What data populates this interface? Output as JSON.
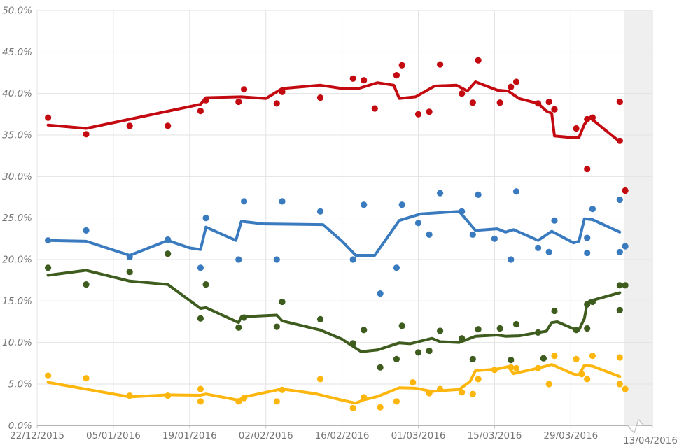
{
  "chart_data": {
    "type": "scatter",
    "title": "",
    "description": "Polling chart: four series of poll result dots with thick trend lines, percentages vs date",
    "grid": true,
    "legend_position": "none",
    "x_axis": {
      "start_date_label": "22/12/2015",
      "tick_days": [
        0,
        14,
        28,
        42,
        56,
        70,
        84,
        98
      ],
      "tick_labels": [
        "22/12/2015",
        "05/01/2016",
        "19/01/2016",
        "02/02/2016",
        "16/02/2016",
        "01/03/2016",
        "15/03/2016",
        "29/03/2016"
      ],
      "end_tick_day": 113,
      "end_tick_label": "13/04/2016",
      "total_days": 113
    },
    "y_axis": {
      "min": 0,
      "max": 50,
      "step": 5,
      "tick_labels": [
        "0.0%",
        "5.0%",
        "10.0%",
        "15.0%",
        "20.0%",
        "25.0%",
        "30.0%",
        "35.0%",
        "40.0%",
        "45.0%",
        "50.0%"
      ]
    },
    "highlight_band": {
      "from_day": 107.8,
      "to_day": 113
    },
    "series": [
      {
        "name": "red-series",
        "color": "#c30a10",
        "trend": [
          [
            2,
            36.2
          ],
          [
            9,
            35.8
          ],
          [
            30,
            38.7
          ],
          [
            31,
            39.5
          ],
          [
            37.5,
            39.6
          ],
          [
            42,
            39.4
          ],
          [
            45,
            40.6
          ],
          [
            52,
            41.0
          ],
          [
            56,
            40.6
          ],
          [
            59,
            40.6
          ],
          [
            62.5,
            41.3
          ],
          [
            65.5,
            41.0
          ],
          [
            66.5,
            39.4
          ],
          [
            69.5,
            39.6
          ],
          [
            73,
            40.9
          ],
          [
            77,
            41.0
          ],
          [
            79,
            40.3
          ],
          [
            80.5,
            41.4
          ],
          [
            84.5,
            40.4
          ],
          [
            86.5,
            40.3
          ],
          [
            88.5,
            39.4
          ],
          [
            92,
            38.8
          ],
          [
            93.5,
            37.9
          ],
          [
            94.5,
            37.6
          ],
          [
            95,
            34.9
          ],
          [
            98,
            34.7
          ],
          [
            99.5,
            34.7
          ],
          [
            100.5,
            36.3
          ],
          [
            101.5,
            37.1
          ],
          [
            107,
            34.2
          ]
        ],
        "polls": [
          [
            2,
            37.1
          ],
          [
            9,
            35.1
          ],
          [
            17,
            36.1
          ],
          [
            24,
            36.1
          ],
          [
            30,
            37.9
          ],
          [
            31,
            39.2
          ],
          [
            37,
            39.0
          ],
          [
            38,
            40.5
          ],
          [
            44,
            38.8
          ],
          [
            45,
            40.2
          ],
          [
            52,
            39.5
          ],
          [
            58,
            41.8
          ],
          [
            60,
            41.6
          ],
          [
            62,
            38.2
          ],
          [
            66,
            42.2
          ],
          [
            67,
            43.4
          ],
          [
            70,
            37.5
          ],
          [
            72,
            37.8
          ],
          [
            74,
            43.5
          ],
          [
            78,
            40.0
          ],
          [
            80,
            38.9
          ],
          [
            81,
            44.0
          ],
          [
            85,
            38.9
          ],
          [
            87,
            40.8
          ],
          [
            88,
            41.4
          ],
          [
            92,
            38.8
          ],
          [
            94,
            39.0
          ],
          [
            95,
            38.1
          ],
          [
            99,
            35.8
          ],
          [
            101,
            30.9
          ],
          [
            101,
            36.9
          ],
          [
            102,
            37.1
          ],
          [
            107,
            34.3
          ],
          [
            107,
            39.0
          ],
          [
            108,
            28.3
          ]
        ]
      },
      {
        "name": "blue-series",
        "color": "#3a7bbf",
        "trend": [
          [
            2,
            22.3
          ],
          [
            9,
            22.2
          ],
          [
            17,
            20.5
          ],
          [
            24,
            22.3
          ],
          [
            28,
            21.4
          ],
          [
            30,
            21.2
          ],
          [
            31,
            23.9
          ],
          [
            36.5,
            22.3
          ],
          [
            37.5,
            24.6
          ],
          [
            41.5,
            24.3
          ],
          [
            52.5,
            24.2
          ],
          [
            56,
            22.2
          ],
          [
            58.5,
            20.5
          ],
          [
            62,
            20.5
          ],
          [
            66.5,
            24.7
          ],
          [
            70.5,
            25.5
          ],
          [
            77.5,
            25.8
          ],
          [
            80.5,
            23.5
          ],
          [
            84.5,
            23.7
          ],
          [
            86,
            23.3
          ],
          [
            87.5,
            23.6
          ],
          [
            92,
            22.3
          ],
          [
            94.5,
            23.4
          ],
          [
            98.5,
            22.0
          ],
          [
            99.5,
            22.2
          ],
          [
            100.5,
            24.9
          ],
          [
            102,
            24.8
          ],
          [
            107,
            23.3
          ]
        ],
        "polls": [
          [
            2,
            22.3
          ],
          [
            9,
            23.5
          ],
          [
            17,
            20.3
          ],
          [
            24,
            22.4
          ],
          [
            30,
            19.0
          ],
          [
            31,
            25.0
          ],
          [
            37,
            20.0
          ],
          [
            38,
            27.0
          ],
          [
            44,
            20.0
          ],
          [
            45,
            27.0
          ],
          [
            52,
            25.8
          ],
          [
            58,
            20.0
          ],
          [
            60,
            26.6
          ],
          [
            63,
            15.9
          ],
          [
            66,
            19.0
          ],
          [
            67,
            26.6
          ],
          [
            70,
            24.4
          ],
          [
            72,
            23.0
          ],
          [
            74,
            28.0
          ],
          [
            78,
            25.8
          ],
          [
            80,
            23.0
          ],
          [
            81,
            27.8
          ],
          [
            84,
            22.5
          ],
          [
            87,
            20.0
          ],
          [
            88,
            28.2
          ],
          [
            92,
            21.4
          ],
          [
            94,
            20.9
          ],
          [
            95,
            24.7
          ],
          [
            101,
            20.8
          ],
          [
            101,
            22.6
          ],
          [
            102,
            26.1
          ],
          [
            107,
            20.9
          ],
          [
            107,
            27.2
          ],
          [
            108,
            21.6
          ]
        ]
      },
      {
        "name": "green-series",
        "color": "#3d5c1d",
        "trend": [
          [
            2,
            18.1
          ],
          [
            9,
            18.7
          ],
          [
            17,
            17.4
          ],
          [
            24,
            17.0
          ],
          [
            30,
            14.1
          ],
          [
            31,
            14.2
          ],
          [
            37,
            12.4
          ],
          [
            37.5,
            13.1
          ],
          [
            44,
            13.3
          ],
          [
            45,
            12.6
          ],
          [
            52,
            11.5
          ],
          [
            56,
            10.4
          ],
          [
            59.5,
            8.9
          ],
          [
            62.5,
            9.1
          ],
          [
            66.5,
            9.95
          ],
          [
            68.5,
            9.85
          ],
          [
            72.5,
            10.5
          ],
          [
            74,
            10.1
          ],
          [
            77.5,
            10.0
          ],
          [
            80.5,
            10.75
          ],
          [
            84.5,
            10.9
          ],
          [
            86,
            10.75
          ],
          [
            88.5,
            10.8
          ],
          [
            92,
            11.2
          ],
          [
            93.5,
            11.35
          ],
          [
            94.5,
            12.4
          ],
          [
            95.5,
            12.5
          ],
          [
            98.5,
            11.65
          ],
          [
            99.5,
            11.5
          ],
          [
            100.5,
            12.9
          ],
          [
            101,
            14.75
          ],
          [
            101.5,
            15.0
          ],
          [
            107,
            16.0
          ]
        ],
        "polls": [
          [
            2,
            19.0
          ],
          [
            9,
            17.0
          ],
          [
            17,
            18.5
          ],
          [
            24,
            20.7
          ],
          [
            30,
            12.9
          ],
          [
            31,
            17.0
          ],
          [
            37,
            11.8
          ],
          [
            38,
            13.0
          ],
          [
            44,
            11.9
          ],
          [
            45,
            14.9
          ],
          [
            52,
            12.8
          ],
          [
            58,
            9.9
          ],
          [
            60,
            11.5
          ],
          [
            63,
            7.0
          ],
          [
            66,
            8.0
          ],
          [
            67,
            12.0
          ],
          [
            70,
            8.8
          ],
          [
            72,
            9.0
          ],
          [
            74,
            11.4
          ],
          [
            78,
            10.5
          ],
          [
            80,
            8.0
          ],
          [
            81,
            11.6
          ],
          [
            85,
            11.7
          ],
          [
            87,
            7.9
          ],
          [
            88,
            12.2
          ],
          [
            92,
            11.2
          ],
          [
            93,
            8.1
          ],
          [
            95,
            13.8
          ],
          [
            99,
            11.5
          ],
          [
            101,
            11.7
          ],
          [
            101,
            14.6
          ],
          [
            102,
            14.9
          ],
          [
            107,
            13.9
          ],
          [
            107,
            16.9
          ],
          [
            108,
            16.9
          ]
        ]
      },
      {
        "name": "yellow-series",
        "color": "#fdb60d",
        "trend": [
          [
            2,
            5.2
          ],
          [
            17,
            3.45
          ],
          [
            24,
            3.7
          ],
          [
            30,
            3.65
          ],
          [
            31,
            3.8
          ],
          [
            37,
            3.05
          ],
          [
            38,
            3.45
          ],
          [
            44.5,
            4.35
          ],
          [
            45,
            4.4
          ],
          [
            51,
            3.85
          ],
          [
            56,
            3.05
          ],
          [
            58.5,
            2.7
          ],
          [
            60,
            3.1
          ],
          [
            62.5,
            3.5
          ],
          [
            66.5,
            4.55
          ],
          [
            69.5,
            4.5
          ],
          [
            72.5,
            4.1
          ],
          [
            74,
            4.2
          ],
          [
            77.5,
            4.35
          ],
          [
            79.5,
            5.3
          ],
          [
            80.5,
            6.6
          ],
          [
            84.5,
            6.8
          ],
          [
            86.5,
            7.1
          ],
          [
            87.5,
            6.25
          ],
          [
            92,
            6.9
          ],
          [
            94.5,
            7.35
          ],
          [
            98.5,
            6.2
          ],
          [
            99.5,
            6.1
          ],
          [
            100.5,
            7.25
          ],
          [
            102,
            7.15
          ],
          [
            107,
            5.9
          ]
        ],
        "polls": [
          [
            2,
            6.0
          ],
          [
            9,
            5.7
          ],
          [
            17,
            3.6
          ],
          [
            24,
            3.6
          ],
          [
            30,
            2.9
          ],
          [
            30,
            4.4
          ],
          [
            37,
            2.9
          ],
          [
            38,
            3.3
          ],
          [
            44,
            2.9
          ],
          [
            45,
            4.3
          ],
          [
            52,
            5.6
          ],
          [
            58,
            2.1
          ],
          [
            60,
            3.4
          ],
          [
            63,
            2.2
          ],
          [
            66,
            2.9
          ],
          [
            69,
            5.2
          ],
          [
            72,
            3.9
          ],
          [
            74,
            4.4
          ],
          [
            78,
            4.0
          ],
          [
            80,
            3.8
          ],
          [
            81,
            5.6
          ],
          [
            84,
            6.7
          ],
          [
            87,
            7.0
          ],
          [
            88,
            6.9
          ],
          [
            92,
            6.9
          ],
          [
            94,
            5.0
          ],
          [
            95,
            8.4
          ],
          [
            99,
            8.0
          ],
          [
            100,
            6.2
          ],
          [
            101,
            5.6
          ],
          [
            102,
            8.4
          ],
          [
            107,
            5.0
          ],
          [
            107,
            8.2
          ],
          [
            108,
            4.4
          ]
        ]
      }
    ],
    "colors": {
      "gridline": "#e3e3e3",
      "axis_line": "#9c9c9c",
      "tick_mark": "#c3c3c3",
      "band_fill": "#efefef",
      "band_edge": "#dcdcdc",
      "label_text": "#757575",
      "flag_stroke": "#bdbdbd"
    }
  }
}
